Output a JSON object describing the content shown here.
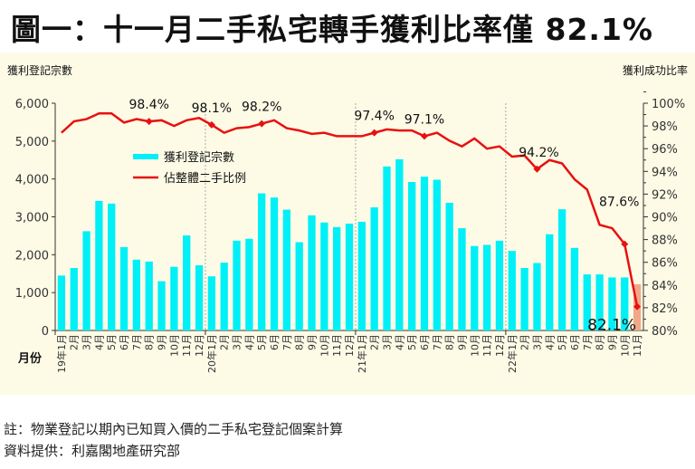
{
  "title": "圖一：十一月二手私宅轉手獲利比率僅 82.1%",
  "notes": {
    "note": "註：物業登記以期內已知買入價的二手私宅登記個案計算",
    "source": "資料提供：利嘉閣地產研究部"
  },
  "chart_data": {
    "type": "bar+line",
    "ylabel_left": "獲利登記宗數",
    "ylabel_right": "獲利成功比率",
    "xlabel": "月份",
    "ylim_left": [
      0,
      6000
    ],
    "yticks_left": [
      "0",
      "1,000",
      "2,000",
      "3,000",
      "4,000",
      "5,000",
      "6,000"
    ],
    "ylim_right": [
      80,
      100
    ],
    "yticks_right": [
      "80%",
      "82%",
      "84%",
      "86%",
      "88%",
      "90%",
      "92%",
      "94%",
      "96%",
      "98%",
      "100%"
    ],
    "categories": [
      "19年1月",
      "2月",
      "3月",
      "4月",
      "5月",
      "6月",
      "7月",
      "8月",
      "9月",
      "10月",
      "11月",
      "12月",
      "20年1月",
      "2月",
      "3月",
      "4月",
      "5月",
      "6月",
      "7月",
      "8月",
      "9月",
      "10月",
      "11月",
      "12月",
      "21年1月",
      "2月",
      "3月",
      "4月",
      "5月",
      "6月",
      "7月",
      "8月",
      "9月",
      "10月",
      "11月",
      "12月",
      "22年1月",
      "2月",
      "3月",
      "4月",
      "5月",
      "6月",
      "7月",
      "8月",
      "9月",
      "10月",
      "11月"
    ],
    "series": [
      {
        "name": "獲利登記宗數",
        "type": "bar",
        "axis": "left",
        "color": "#00f0f8",
        "highlight_last_color": "#f0a888",
        "values": [
          1450,
          1650,
          2620,
          3420,
          3350,
          2200,
          1870,
          1820,
          1300,
          1680,
          2510,
          1720,
          1430,
          1790,
          2370,
          2420,
          3620,
          3510,
          3190,
          2330,
          3040,
          2850,
          2730,
          2820,
          2870,
          3250,
          4330,
          4520,
          3920,
          4060,
          3980,
          3370,
          2700,
          2230,
          2260,
          2370,
          2100,
          1650,
          1780,
          2540,
          3200,
          2180,
          1480,
          1480,
          1400,
          1400,
          1220
        ]
      },
      {
        "name": "佔整體二手比例",
        "type": "line",
        "axis": "right",
        "color": "#e81010",
        "values": [
          97.4,
          98.4,
          98.6,
          99.1,
          99.1,
          98.3,
          98.6,
          98.4,
          98.5,
          98.0,
          98.5,
          98.7,
          98.1,
          97.4,
          97.8,
          97.9,
          98.2,
          98.5,
          97.8,
          97.6,
          97.3,
          97.4,
          97.1,
          97.1,
          97.1,
          97.4,
          97.7,
          97.6,
          97.6,
          97.1,
          97.4,
          96.7,
          96.2,
          96.9,
          96.0,
          96.2,
          95.3,
          95.4,
          94.2,
          95.0,
          94.7,
          93.3,
          92.4,
          89.3,
          89.0,
          87.6,
          82.1
        ]
      }
    ],
    "annotations": [
      {
        "index": 7,
        "label": "98.4%"
      },
      {
        "index": 12,
        "label": "98.1%"
      },
      {
        "index": 16,
        "label": "98.2%"
      },
      {
        "index": 25,
        "label": "97.4%"
      },
      {
        "index": 29,
        "label": "97.1%"
      },
      {
        "index": 38,
        "label": "94.2%"
      },
      {
        "index": 45,
        "label": "87.6%"
      },
      {
        "index": 46,
        "label": "82.1%"
      }
    ],
    "legend": "upper-left-inside"
  }
}
